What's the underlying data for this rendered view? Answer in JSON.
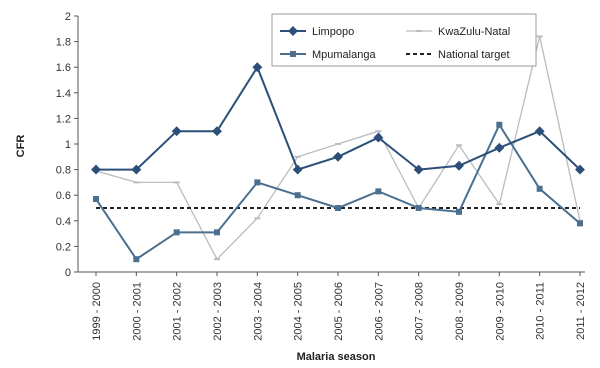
{
  "chart_data": {
    "type": "line",
    "xlabel": "Malaria season",
    "ylabel": "CFR",
    "ylim": [
      0,
      2
    ],
    "yticks": [
      0,
      0.2,
      0.4,
      0.6,
      0.8,
      1,
      1.2,
      1.4,
      1.6,
      1.8,
      2
    ],
    "ytick_labels": [
      "0",
      "0.2",
      "0.4",
      "0.6",
      "0.8",
      "1",
      "1.2",
      "1.4",
      "1.6",
      "1.8",
      "2"
    ],
    "categories": [
      "1999 - 2000",
      "2000 - 2001",
      "2001 - 2002",
      "2002 - 2003",
      "2003 - 2004",
      "2004 - 2005",
      "2005 - 2006",
      "2006 - 2007",
      "2007 - 2008",
      "2008 - 2009",
      "2009 - 2010",
      "2010 - 2011",
      "2011 - 2012"
    ],
    "series": [
      {
        "name": "Limpopo",
        "color": "#2b4f78",
        "style": "solid-diamond",
        "values": [
          0.8,
          0.8,
          1.1,
          1.1,
          1.6,
          0.8,
          0.9,
          1.05,
          0.8,
          0.83,
          0.97,
          1.1,
          0.8
        ]
      },
      {
        "name": "Mpumalanga",
        "color": "#4a6f8f",
        "style": "solid-square",
        "values": [
          0.57,
          0.1,
          0.31,
          0.31,
          0.7,
          0.6,
          0.5,
          0.63,
          0.5,
          0.47,
          1.15,
          0.65,
          0.38
        ]
      },
      {
        "name": "KwaZulu-Natal",
        "color": "#b9bcc0",
        "style": "light",
        "values": [
          0.79,
          0.7,
          0.7,
          0.1,
          0.42,
          0.9,
          1.0,
          1.1,
          0.5,
          0.99,
          0.53,
          1.84,
          0.4
        ]
      },
      {
        "name": "National target",
        "color": "#222222",
        "style": "dotted",
        "values": [
          0.5,
          0.5,
          0.5,
          0.5,
          0.5,
          0.5,
          0.5,
          0.5,
          0.5,
          0.5,
          0.5,
          0.5,
          0.5
        ]
      }
    ],
    "legend_placement": "top-right",
    "grid": false
  }
}
